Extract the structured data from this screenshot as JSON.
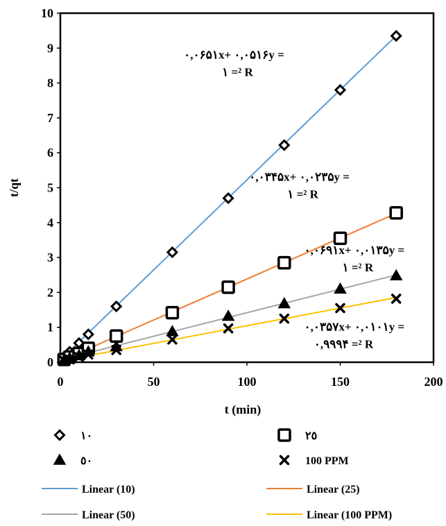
{
  "chart_data": {
    "type": "scatter",
    "xlabel": "t (min)",
    "ylabel": "t/qt",
    "xlim": [
      0,
      200
    ],
    "ylim": [
      0,
      10
    ],
    "xticks": [
      "0",
      "50",
      "100",
      "150",
      "200"
    ],
    "yticks": [
      "0",
      "1",
      "2",
      "3",
      "4",
      "5",
      "6",
      "7",
      "8",
      "9",
      "10"
    ],
    "grid": false,
    "legend_position": "bottom",
    "series": [
      {
        "name": "١٠",
        "marker": "diamond",
        "x": [
          2,
          5,
          10,
          15,
          30,
          60,
          90,
          120,
          150,
          180
        ],
        "y": [
          0.15,
          0.3,
          0.55,
          0.8,
          1.6,
          3.15,
          4.7,
          6.22,
          7.8,
          9.35
        ]
      },
      {
        "name": "٢٥",
        "marker": "square",
        "x": [
          2,
          5,
          10,
          15,
          30,
          60,
          90,
          120,
          150,
          180
        ],
        "y": [
          0.08,
          0.15,
          0.25,
          0.4,
          0.75,
          1.42,
          2.15,
          2.85,
          3.55,
          4.28
        ]
      },
      {
        "name": "٥٠",
        "marker": "triangle",
        "x": [
          2,
          5,
          10,
          15,
          30,
          60,
          90,
          120,
          150,
          180
        ],
        "y": [
          0.06,
          0.12,
          0.2,
          0.3,
          0.45,
          0.88,
          1.32,
          1.68,
          2.1,
          2.48
        ]
      },
      {
        "name": "100 PPM",
        "marker": "x",
        "x": [
          2,
          5,
          10,
          15,
          30,
          60,
          90,
          120,
          150,
          180
        ],
        "y": [
          0.05,
          0.08,
          0.15,
          0.22,
          0.35,
          0.65,
          0.97,
          1.25,
          1.55,
          1.82
        ]
      }
    ],
    "trendlines": [
      {
        "name": "Linear (10)",
        "color": "#5b9bd5",
        "slope": 0.0516,
        "intercept": 0.0651
      },
      {
        "name": "Linear (25)",
        "color": "#ed7d31",
        "slope": 0.0235,
        "intercept": 0.0345
      },
      {
        "name": "Linear (50)",
        "color": "#a5a5a5",
        "slope": 0.0135,
        "intercept": 0.0691
      },
      {
        "name": "Linear (100 PPM)",
        "color": "#ffc000",
        "slope": 0.0101,
        "intercept": 0.0357
      }
    ],
    "annotations": [
      {
        "line1": "٠,٠۶۵١x+ ٠,٠۵١۶y =",
        "line2": "١ =² R",
        "x": 120,
        "y": 8.7
      },
      {
        "line1": "٠,٠٣۴۵x+ ٠,٠٢٣۵y =",
        "line2": "١ =² R",
        "x": 155,
        "y": 5.2
      },
      {
        "line1": "٠,٠۶٩١x+ ٠,٠١٣۵y =",
        "line2": "١ =² R",
        "x": 180,
        "y": 3.1
      },
      {
        "line1": "٠,٠٣۵٧x+ ٠,٠١٠١y =",
        "line2": "٠,٩٩٩۴ =² R",
        "x": 180,
        "y": 0.9
      }
    ]
  }
}
